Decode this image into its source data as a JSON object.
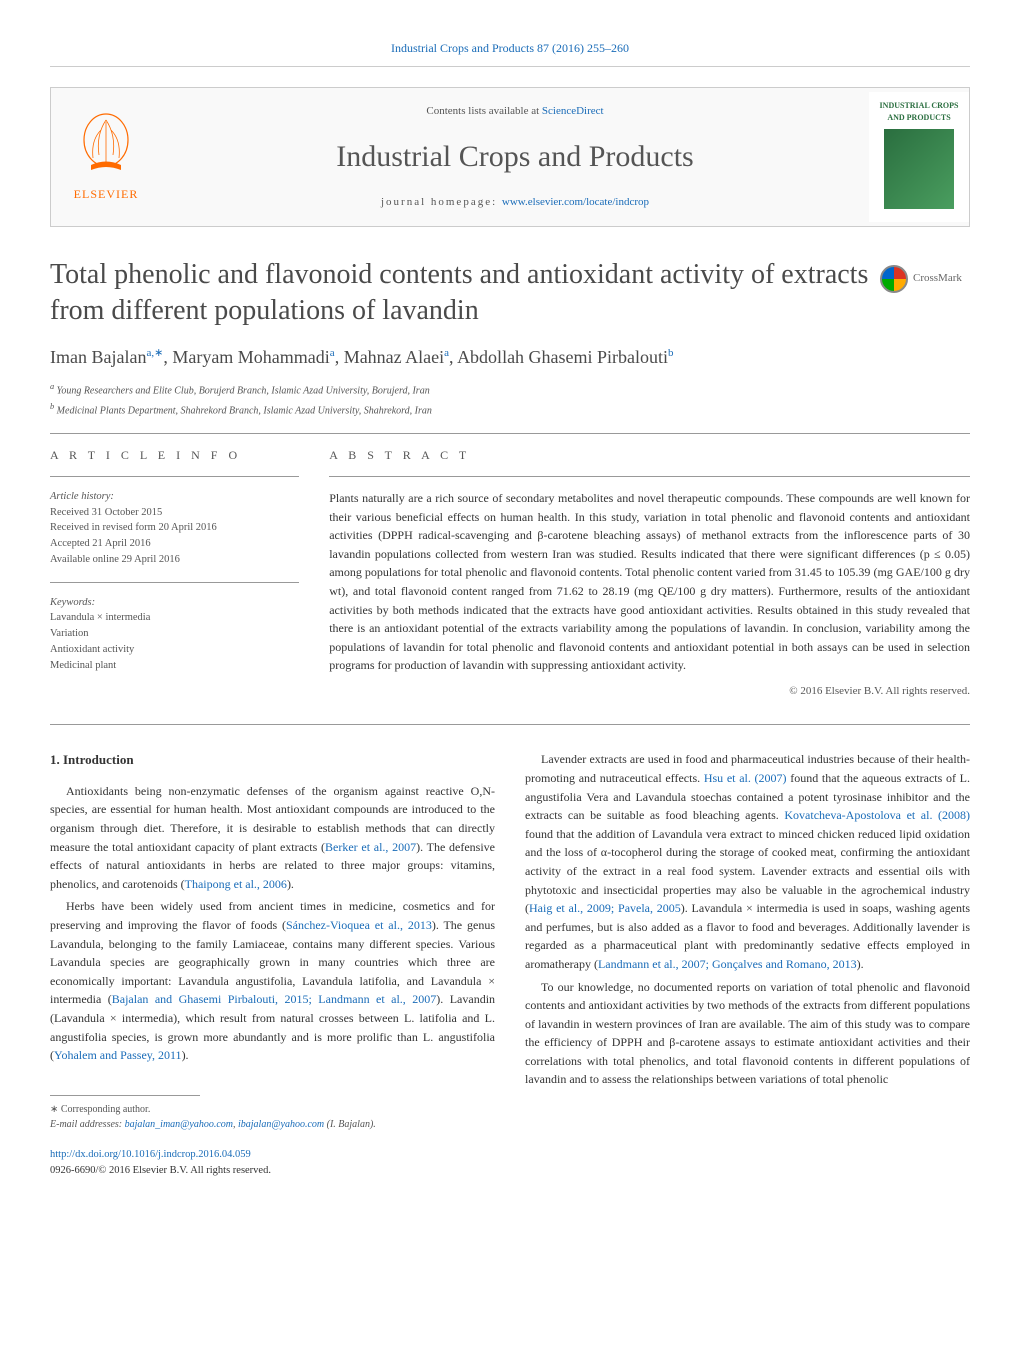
{
  "header": {
    "citation": "Industrial Crops and Products 87 (2016) 255–260",
    "citation_link": "Industrial Crops and Products 87 (2016) 255–260"
  },
  "journal_box": {
    "elsevier_label": "ELSEVIER",
    "contents_prefix": "Contents lists available at ",
    "contents_link": "ScienceDirect",
    "journal_name": "Industrial Crops and Products",
    "homepage_prefix": "journal homepage: ",
    "homepage_link": "www.elsevier.com/locate/indcrop",
    "cover_title": "INDUSTRIAL CROPS AND PRODUCTS"
  },
  "article": {
    "title": "Total phenolic and flavonoid contents and antioxidant activity of extracts from different populations of lavandin",
    "crossmark": "CrossMark",
    "authors_html": "Iman Bajalan",
    "authors": [
      {
        "name": "Iman Bajalan",
        "sup": "a,∗"
      },
      {
        "name": "Maryam Mohammadi",
        "sup": "a"
      },
      {
        "name": "Mahnaz Alaei",
        "sup": "a"
      },
      {
        "name": "Abdollah Ghasemi Pirbalouti",
        "sup": "b"
      }
    ],
    "affiliations": [
      {
        "sup": "a",
        "text": "Young Researchers and Elite Club, Borujerd Branch, Islamic Azad University, Borujerd, Iran"
      },
      {
        "sup": "b",
        "text": "Medicinal Plants Department, Shahrekord Branch, Islamic Azad University, Shahrekord, Iran"
      }
    ]
  },
  "info": {
    "article_info_label": "A R T I C L E   I N F O",
    "abstract_label": "A B S T R A C T",
    "history_label": "Article history:",
    "received": "Received 31 October 2015",
    "revised": "Received in revised form 20 April 2016",
    "accepted": "Accepted 21 April 2016",
    "online": "Available online 29 April 2016",
    "keywords_label": "Keywords:",
    "keywords": [
      "Lavandula × intermedia",
      "Variation",
      "Antioxidant activity",
      "Medicinal plant"
    ]
  },
  "abstract": {
    "text": "Plants naturally are a rich source of secondary metabolites and novel therapeutic compounds. These compounds are well known for their various beneficial effects on human health. In this study, variation in total phenolic and flavonoid contents and antioxidant activities (DPPH radical-scavenging and β-carotene bleaching assays) of methanol extracts from the inflorescence parts of 30 lavandin populations collected from western Iran was studied. Results indicated that there were significant differences (p ≤ 0.05) among populations for total phenolic and flavonoid contents. Total phenolic content varied from 31.45 to 105.39 (mg GAE/100 g dry wt), and total flavonoid content ranged from 71.62 to 28.19 (mg QE/100 g dry matters). Furthermore, results of the antioxidant activities by both methods indicated that the extracts have good antioxidant activities. Results obtained in this study revealed that there is an antioxidant potential of the extracts variability among the populations of lavandin. In conclusion, variability among the populations of lavandin for total phenolic and flavonoid contents and antioxidant potential in both assays can be used in selection programs for production of lavandin with suppressing antioxidant activity.",
    "copyright": "© 2016 Elsevier B.V. All rights reserved."
  },
  "body": {
    "intro_heading": "1. Introduction",
    "left_paragraphs": [
      "Antioxidants being non-enzymatic defenses of the organism against reactive O,N-species, are essential for human health. Most antioxidant compounds are introduced to the organism through diet. Therefore, it is desirable to establish methods that can directly measure the total antioxidant capacity of plant extracts (Berker et al., 2007). The defensive effects of natural antioxidants in herbs are related to three major groups: vitamins, phenolics, and carotenoids (Thaipong et al., 2006).",
      "Herbs have been widely used from ancient times in medicine, cosmetics and for preserving and improving the flavor of foods (Sánchez-Vioquea et al., 2013). The genus Lavandula, belonging to the family Lamiaceae, contains many different species. Various Lavandula species are geographically grown in many countries which three are economically important: Lavandula angustifolia, Lavandula latifolia, and Lavandula × intermedia (Bajalan and Ghasemi Pirbalouti, 2015; Landmann et al., 2007). Lavandin (Lavandula × intermedia), which result from natural crosses between L. latifolia and L. angustifolia species, is grown more abundantly and is more prolific than L. angustifolia (Yohalem and Passey, 2011)."
    ],
    "right_paragraphs": [
      "Lavender extracts are used in food and pharmaceutical industries because of their health-promoting and nutraceutical effects. Hsu et al. (2007) found that the aqueous extracts of L. angustifolia Vera and Lavandula stoechas contained a potent tyrosinase inhibitor and the extracts can be suitable as food bleaching agents. Kovatcheva-Apostolova et al. (2008) found that the addition of Lavandula vera extract to minced chicken reduced lipid oxidation and the loss of α-tocopherol during the storage of cooked meat, confirming the antioxidant activity of the extract in a real food system. Lavender extracts and essential oils with phytotoxic and insecticidal properties may also be valuable in the agrochemical industry (Haig et al., 2009; Pavela, 2005). Lavandula × intermedia is used in soaps, washing agents and perfumes, but is also added as a flavor to food and beverages. Additionally lavender is regarded as a pharmaceutical plant with predominantly sedative effects employed in aromatherapy (Landmann et al., 2007; Gonçalves and Romano, 2013).",
      "To our knowledge, no documented reports on variation of total phenolic and flavonoid contents and antioxidant activities by two methods of the extracts from different populations of lavandin in western provinces of Iran are available. The aim of this study was to compare the efficiency of DPPH and β-carotene assays to estimate antioxidant activities and their correlations with total phenolics, and total flavonoid contents in different populations of lavandin and to assess the relationships between variations of total phenolic"
    ]
  },
  "footer": {
    "corresponding": "∗ Corresponding author.",
    "email_label": "E-mail addresses: ",
    "email1": "bajalan_iman@yahoo.com",
    "email2": "ibajalan@yahoo.com",
    "email_suffix": " (I. Bajalan).",
    "doi_link": "http://dx.doi.org/10.1016/j.indcrop.2016.04.059",
    "issn_copyright": "0926-6690/© 2016 Elsevier B.V. All rights reserved."
  },
  "colors": {
    "link": "#1a6cb8",
    "elsevier_orange": "#ff6b00",
    "text_gray": "#555"
  }
}
